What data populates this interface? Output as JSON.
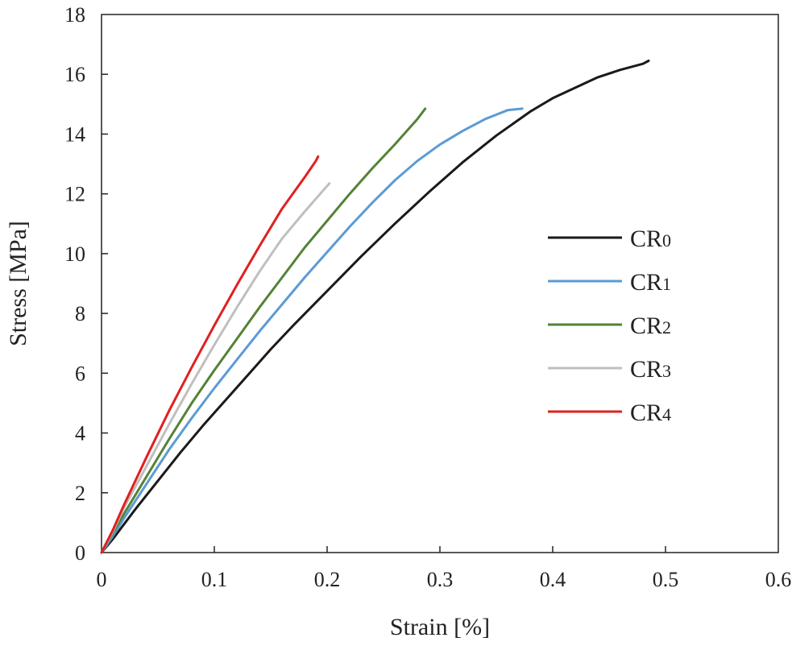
{
  "chart_data": {
    "type": "line",
    "title": "",
    "xlabel": "Strain [%]",
    "ylabel": "Stress [MPa]",
    "xlim": [
      0,
      0.6
    ],
    "ylim": [
      0,
      18
    ],
    "xticks": [
      "0",
      "0.1",
      "0.2",
      "0.3",
      "0.4",
      "0.5",
      "0.6"
    ],
    "yticks": [
      "0",
      "2",
      "4",
      "6",
      "8",
      "10",
      "12",
      "14",
      "16",
      "18"
    ],
    "grid": false,
    "legend_position": "right",
    "series": [
      {
        "name": "CR0",
        "name_base": "CR",
        "name_sub": "0",
        "color": "#1a1a1a",
        "points": [
          [
            0,
            0
          ],
          [
            0.01,
            0.45
          ],
          [
            0.02,
            0.95
          ],
          [
            0.03,
            1.45
          ],
          [
            0.05,
            2.4
          ],
          [
            0.07,
            3.35
          ],
          [
            0.09,
            4.25
          ],
          [
            0.11,
            5.1
          ],
          [
            0.13,
            5.95
          ],
          [
            0.15,
            6.8
          ],
          [
            0.17,
            7.6
          ],
          [
            0.2,
            8.75
          ],
          [
            0.23,
            9.9
          ],
          [
            0.26,
            11.0
          ],
          [
            0.29,
            12.05
          ],
          [
            0.32,
            13.05
          ],
          [
            0.35,
            13.95
          ],
          [
            0.38,
            14.75
          ],
          [
            0.4,
            15.2
          ],
          [
            0.42,
            15.55
          ],
          [
            0.44,
            15.9
          ],
          [
            0.46,
            16.15
          ],
          [
            0.48,
            16.35
          ],
          [
            0.485,
            16.45
          ]
        ]
      },
      {
        "name": "CR1",
        "name_base": "CR",
        "name_sub": "1",
        "color": "#5b9bd5",
        "points": [
          [
            0,
            0
          ],
          [
            0.01,
            0.55
          ],
          [
            0.02,
            1.15
          ],
          [
            0.04,
            2.3
          ],
          [
            0.06,
            3.45
          ],
          [
            0.08,
            4.5
          ],
          [
            0.1,
            5.5
          ],
          [
            0.12,
            6.45
          ],
          [
            0.14,
            7.4
          ],
          [
            0.16,
            8.3
          ],
          [
            0.18,
            9.2
          ],
          [
            0.2,
            10.05
          ],
          [
            0.22,
            10.9
          ],
          [
            0.24,
            11.7
          ],
          [
            0.26,
            12.45
          ],
          [
            0.28,
            13.1
          ],
          [
            0.3,
            13.65
          ],
          [
            0.32,
            14.1
          ],
          [
            0.34,
            14.5
          ],
          [
            0.36,
            14.8
          ],
          [
            0.373,
            14.85
          ]
        ]
      },
      {
        "name": "CR2",
        "name_base": "CR",
        "name_sub": "2",
        "color": "#548235",
        "points": [
          [
            0,
            0
          ],
          [
            0.01,
            0.65
          ],
          [
            0.02,
            1.3
          ],
          [
            0.04,
            2.55
          ],
          [
            0.06,
            3.8
          ],
          [
            0.08,
            5.0
          ],
          [
            0.1,
            6.1
          ],
          [
            0.12,
            7.15
          ],
          [
            0.14,
            8.2
          ],
          [
            0.16,
            9.2
          ],
          [
            0.18,
            10.2
          ],
          [
            0.2,
            11.1
          ],
          [
            0.22,
            12.0
          ],
          [
            0.24,
            12.85
          ],
          [
            0.26,
            13.65
          ],
          [
            0.28,
            14.5
          ],
          [
            0.287,
            14.85
          ]
        ]
      },
      {
        "name": "CR3",
        "name_base": "CR",
        "name_sub": "3",
        "color": "#bfbfbf",
        "points": [
          [
            0,
            0
          ],
          [
            0.01,
            0.7
          ],
          [
            0.02,
            1.5
          ],
          [
            0.04,
            2.9
          ],
          [
            0.06,
            4.3
          ],
          [
            0.08,
            5.65
          ],
          [
            0.1,
            6.95
          ],
          [
            0.12,
            8.2
          ],
          [
            0.14,
            9.4
          ],
          [
            0.16,
            10.5
          ],
          [
            0.18,
            11.4
          ],
          [
            0.195,
            12.05
          ],
          [
            0.202,
            12.35
          ]
        ]
      },
      {
        "name": "CR4",
        "name_base": "CR",
        "name_sub": "4",
        "color": "#e02020",
        "points": [
          [
            0,
            0
          ],
          [
            0.01,
            0.75
          ],
          [
            0.02,
            1.6
          ],
          [
            0.04,
            3.2
          ],
          [
            0.06,
            4.75
          ],
          [
            0.08,
            6.2
          ],
          [
            0.1,
            7.6
          ],
          [
            0.12,
            8.95
          ],
          [
            0.14,
            10.25
          ],
          [
            0.16,
            11.5
          ],
          [
            0.18,
            12.55
          ],
          [
            0.19,
            13.1
          ],
          [
            0.192,
            13.25
          ]
        ]
      }
    ]
  }
}
